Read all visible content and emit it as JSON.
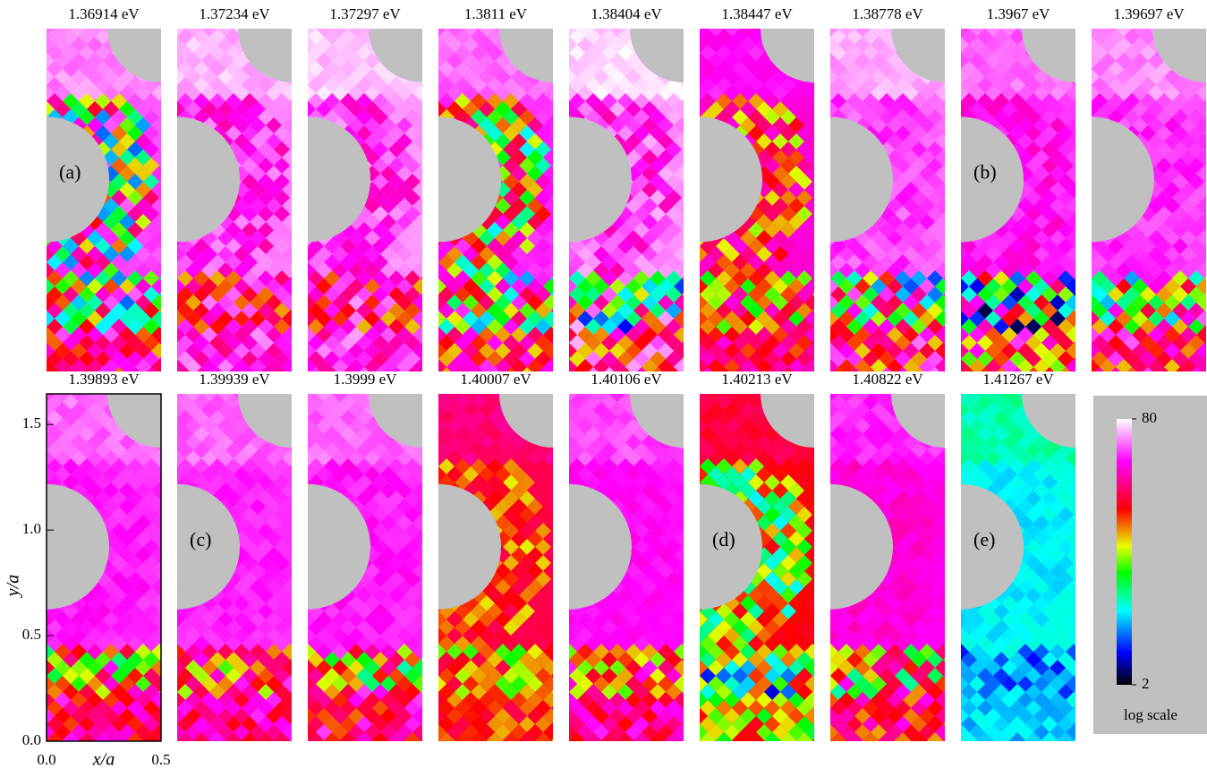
{
  "figure": {
    "panels": [
      {
        "title": "1.36914 eV",
        "label": "(a)"
      },
      {
        "title": "1.37234 eV"
      },
      {
        "title": "1.37297 eV"
      },
      {
        "title": "1.3811 eV"
      },
      {
        "title": "1.38404 eV"
      },
      {
        "title": "1.38447 eV"
      },
      {
        "title": "1.38778 eV"
      },
      {
        "title": "1.3967 eV",
        "label": "(b)"
      },
      {
        "title": "1.39697 eV"
      },
      {
        "title": "1.39893 eV"
      },
      {
        "title": "1.39939 eV",
        "label": "(c)"
      },
      {
        "title": "1.3999 eV"
      },
      {
        "title": "1.40007 eV"
      },
      {
        "title": "1.40106 eV"
      },
      {
        "title": "1.40213 eV",
        "label": "(d)"
      },
      {
        "title": "1.40822 eV"
      },
      {
        "title": "1.41267 eV",
        "label": "(e)"
      }
    ],
    "axes": {
      "xlabel": "x/a",
      "ylabel": "y/a",
      "xlim": [
        0,
        0.5
      ],
      "ylim": [
        0,
        1.645
      ],
      "xticks": [
        {
          "value": 0,
          "label": "0.0"
        },
        0.5
      ],
      "yticks": [
        {
          "value": 0,
          "label": "0.0"
        },
        0.5,
        {
          "value": 1,
          "label": "1.0"
        },
        1.5
      ]
    },
    "colorbar": {
      "clim": [
        2,
        80
      ],
      "log_scale": true,
      "ticks": [
        80,
        2
      ],
      "label": "log scale"
    }
  }
}
